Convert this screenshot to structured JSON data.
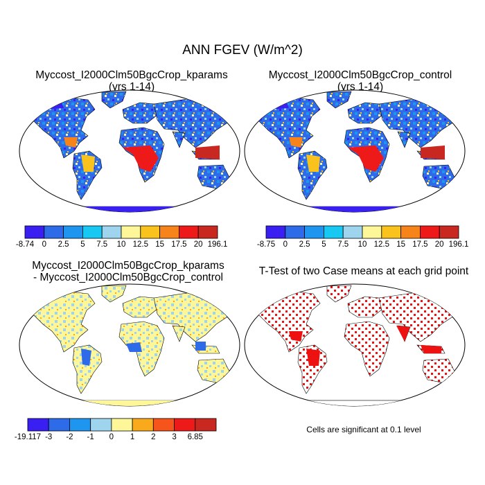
{
  "main_title": "ANN FGEV (W/m^2)",
  "panels": [
    {
      "title_line1": "Myccost_I2000Clm50BgcCrop_kparams",
      "title_line2": "(yrs 1-14)"
    },
    {
      "title_line1": "Myccost_I2000Clm50BgcCrop_control",
      "title_line2": "(yrs 1-14)"
    },
    {
      "title_line1": "Myccost_I2000Clm50BgcCrop_kparams",
      "title_line2": "- Myccost_I2000Clm50BgcCrop_control"
    },
    {
      "title_line1": "T-Test of two Case means at each grid point",
      "title_line2": ""
    }
  ],
  "note": "Cells are significant at 0.1 level",
  "colors": {
    "abs_scale": [
      "#3a1ff2",
      "#2e6be8",
      "#1e96f0",
      "#17c8f2",
      "#9fd4ef",
      "#fdf79a",
      "#f9c21c",
      "#f7831b",
      "#ee1a1a",
      "#c8281f"
    ],
    "diff_scale": [
      "#3a1ff2",
      "#2e6be8",
      "#1e96f0",
      "#9fd4ef",
      "#fdf79a",
      "#f9a91c",
      "#f7541b",
      "#ee1a1a",
      "#c8281f"
    ],
    "significant": "#ee1111"
  },
  "chart_data": [
    {
      "type": "heatmap",
      "panel": "kparams",
      "colorbar_labels": [
        "-8.74",
        "0",
        "2.5",
        "5",
        "7.5",
        "10",
        "12.5",
        "15",
        "17.5",
        "20",
        "196.1"
      ]
    },
    {
      "type": "heatmap",
      "panel": "control",
      "colorbar_labels": [
        "-8.75",
        "0",
        "2.5",
        "5",
        "7.5",
        "10",
        "12.5",
        "15",
        "17.5",
        "20",
        "196.1"
      ]
    },
    {
      "type": "heatmap",
      "panel": "difference",
      "colorbar_labels": [
        "-19.117",
        "-3",
        "-2",
        "-1",
        "0",
        "1",
        "2",
        "3",
        "6.85"
      ]
    },
    {
      "type": "heatmap",
      "panel": "t-test",
      "colorbar_labels": []
    }
  ]
}
